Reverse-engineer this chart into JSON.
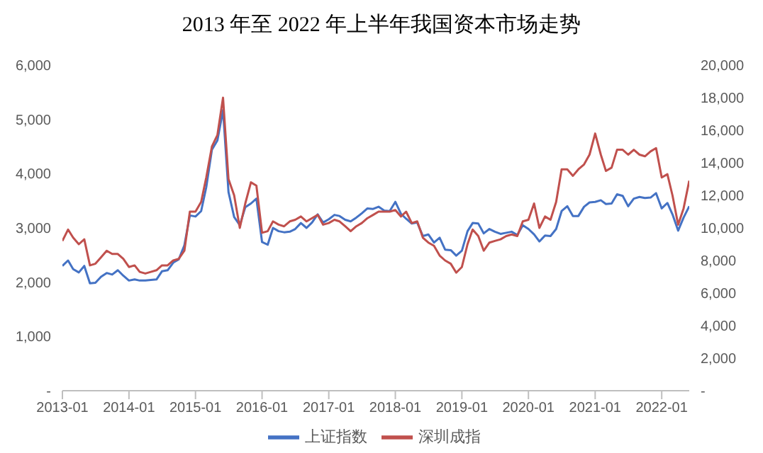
{
  "chart_data": {
    "type": "line",
    "title": "2013 年至 2022 年上半年我国资本市场走势",
    "x": [
      "2013-01",
      "2013-02",
      "2013-03",
      "2013-04",
      "2013-05",
      "2013-06",
      "2013-07",
      "2013-08",
      "2013-09",
      "2013-10",
      "2013-11",
      "2013-12",
      "2014-01",
      "2014-02",
      "2014-03",
      "2014-04",
      "2014-05",
      "2014-06",
      "2014-07",
      "2014-08",
      "2014-09",
      "2014-10",
      "2014-11",
      "2014-12",
      "2015-01",
      "2015-02",
      "2015-03",
      "2015-04",
      "2015-05",
      "2015-06",
      "2015-07",
      "2015-08",
      "2015-09",
      "2015-10",
      "2015-11",
      "2015-12",
      "2016-01",
      "2016-02",
      "2016-03",
      "2016-04",
      "2016-05",
      "2016-06",
      "2016-07",
      "2016-08",
      "2016-09",
      "2016-10",
      "2016-11",
      "2016-12",
      "2017-01",
      "2017-02",
      "2017-03",
      "2017-04",
      "2017-05",
      "2017-06",
      "2017-07",
      "2017-08",
      "2017-09",
      "2017-10",
      "2017-11",
      "2017-12",
      "2018-01",
      "2018-02",
      "2018-03",
      "2018-04",
      "2018-05",
      "2018-06",
      "2018-07",
      "2018-08",
      "2018-09",
      "2018-10",
      "2018-11",
      "2018-12",
      "2019-01",
      "2019-02",
      "2019-03",
      "2019-04",
      "2019-05",
      "2019-06",
      "2019-07",
      "2019-08",
      "2019-09",
      "2019-10",
      "2019-11",
      "2019-12",
      "2020-01",
      "2020-02",
      "2020-03",
      "2020-04",
      "2020-05",
      "2020-06",
      "2020-07",
      "2020-08",
      "2020-09",
      "2020-10",
      "2020-11",
      "2020-12",
      "2021-01",
      "2021-02",
      "2021-03",
      "2021-04",
      "2021-05",
      "2021-06",
      "2021-07",
      "2021-08",
      "2021-09",
      "2021-10",
      "2021-11",
      "2021-12",
      "2022-01",
      "2022-02",
      "2022-03",
      "2022-04",
      "2022-05",
      "2022-06"
    ],
    "series": [
      {
        "name": "上证指数",
        "color": "#4472c4",
        "values": [
          2300,
          2400,
          2240,
          2180,
          2300,
          1980,
          1990,
          2100,
          2170,
          2140,
          2220,
          2120,
          2030,
          2050,
          2030,
          2030,
          2040,
          2050,
          2200,
          2220,
          2360,
          2420,
          2680,
          3230,
          3210,
          3310,
          3750,
          4440,
          4610,
          5170,
          3660,
          3200,
          3050,
          3380,
          3450,
          3540,
          2740,
          2690,
          3000,
          2940,
          2920,
          2930,
          2980,
          3090,
          3000,
          3100,
          3250,
          3100,
          3160,
          3240,
          3220,
          3150,
          3120,
          3190,
          3270,
          3360,
          3350,
          3390,
          3320,
          3310,
          3480,
          3260,
          3170,
          3080,
          3100,
          2850,
          2880,
          2730,
          2820,
          2600,
          2590,
          2490,
          2580,
          2940,
          3090,
          3080,
          2900,
          2980,
          2930,
          2890,
          2910,
          2930,
          2870,
          3050,
          2980,
          2880,
          2750,
          2860,
          2850,
          2980,
          3310,
          3400,
          3220,
          3220,
          3390,
          3470,
          3480,
          3510,
          3440,
          3450,
          3620,
          3590,
          3400,
          3540,
          3570,
          3550,
          3560,
          3640,
          3360,
          3460,
          3250,
          2950,
          3190,
          3400
        ]
      },
      {
        "name": "深圳成指",
        "color": "#c0504d",
        "axis": "y2",
        "values": [
          9200,
          9900,
          9400,
          9000,
          9300,
          7700,
          7800,
          8200,
          8600,
          8400,
          8400,
          8100,
          7600,
          7700,
          7300,
          7200,
          7300,
          7400,
          7700,
          7700,
          8000,
          8100,
          8600,
          11000,
          11000,
          11600,
          13100,
          15000,
          15700,
          18000,
          13000,
          12000,
          10000,
          11500,
          12800,
          12600,
          9700,
          9800,
          10400,
          10200,
          10100,
          10400,
          10500,
          10700,
          10400,
          10600,
          10800,
          10200,
          10300,
          10500,
          10400,
          10100,
          9800,
          10100,
          10300,
          10600,
          10800,
          11000,
          11000,
          11000,
          11100,
          10700,
          11000,
          10300,
          10400,
          9400,
          9100,
          8900,
          8300,
          8000,
          7800,
          7250,
          7600,
          9000,
          9900,
          9500,
          8600,
          9100,
          9200,
          9300,
          9500,
          9600,
          9500,
          10400,
          10500,
          11500,
          10000,
          10700,
          10500,
          11600,
          13600,
          13600,
          13200,
          13600,
          13900,
          14500,
          15800,
          14500,
          13500,
          13700,
          14800,
          14800,
          14500,
          14800,
          14500,
          14400,
          14700,
          14900,
          13100,
          13300,
          12000,
          10200,
          11200,
          12900
        ]
      }
    ],
    "xlim": [
      "2013-01",
      "2022-06"
    ],
    "xticks": [
      "2013-01",
      "2014-01",
      "2015-01",
      "2016-01",
      "2017-01",
      "2018-01",
      "2019-01",
      "2020-01",
      "2021-01",
      "2022-01"
    ],
    "ylim": [
      0,
      6000
    ],
    "yticks": [
      {
        "value": 0,
        "label": "-"
      },
      {
        "value": 1000,
        "label": "1,000"
      },
      {
        "value": 2000,
        "label": "2,000"
      },
      {
        "value": 3000,
        "label": "3,000"
      },
      {
        "value": 4000,
        "label": "4,000"
      },
      {
        "value": 5000,
        "label": "5,000"
      },
      {
        "value": 6000,
        "label": "6,000"
      }
    ],
    "y2lim": [
      0,
      20000
    ],
    "y2ticks": [
      {
        "value": 0,
        "label": "-"
      },
      {
        "value": 2000,
        "label": "2,000"
      },
      {
        "value": 4000,
        "label": "4,000"
      },
      {
        "value": 6000,
        "label": "6,000"
      },
      {
        "value": 8000,
        "label": "8,000"
      },
      {
        "value": 10000,
        "label": "10,000"
      },
      {
        "value": 12000,
        "label": "12,000"
      },
      {
        "value": 14000,
        "label": "14,000"
      },
      {
        "value": 16000,
        "label": "16,000"
      },
      {
        "value": 18000,
        "label": "18,000"
      },
      {
        "value": 20000,
        "label": "20,000"
      }
    ],
    "legend": "bottom"
  }
}
